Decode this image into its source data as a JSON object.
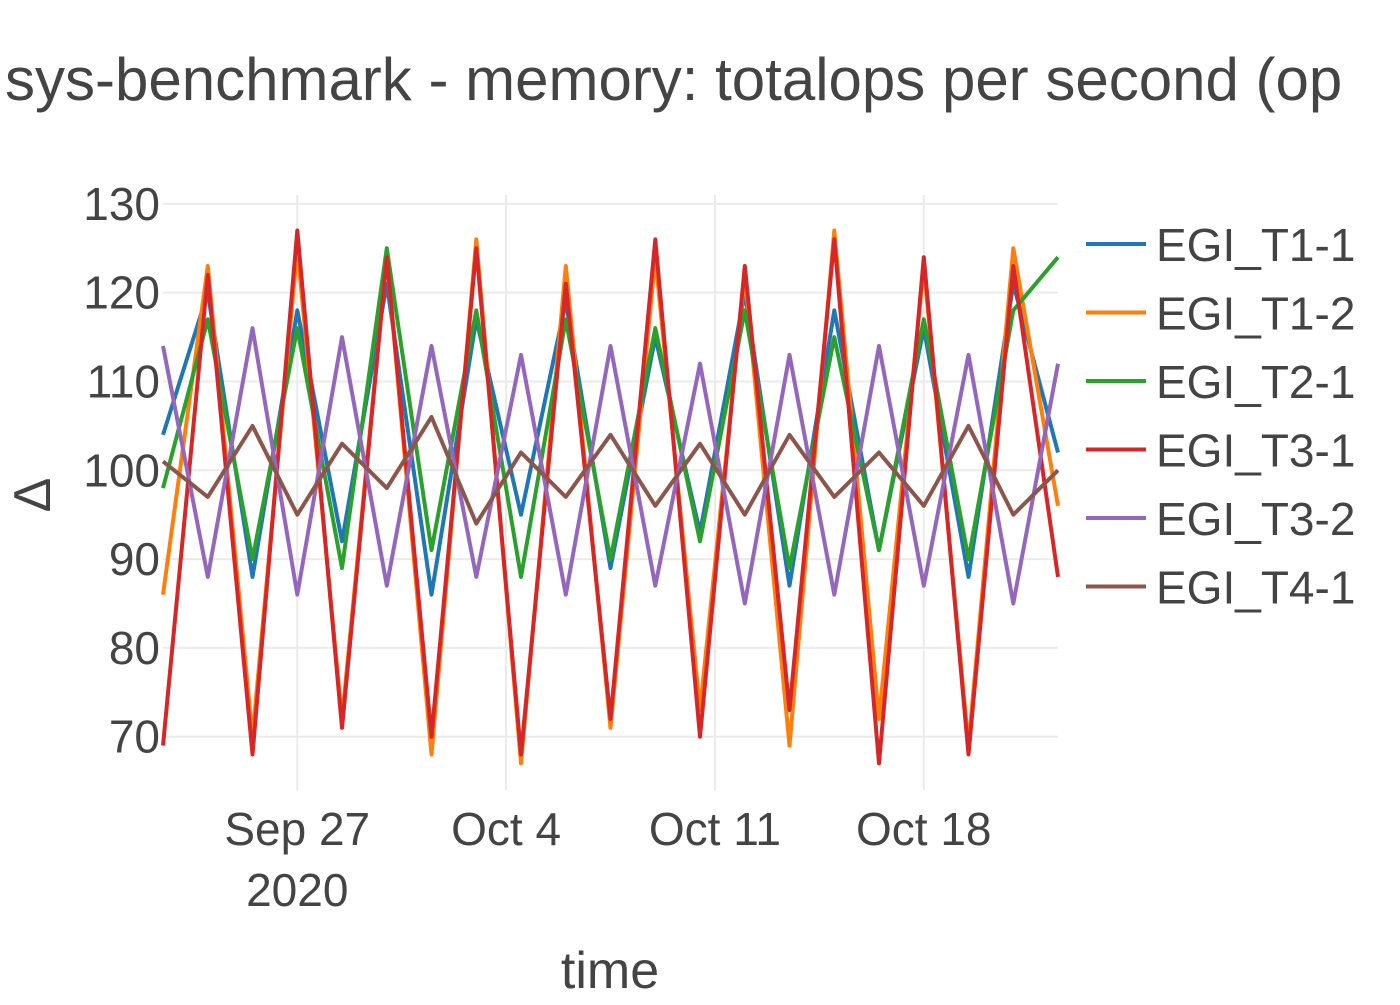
{
  "chart_data": {
    "type": "line",
    "title": "sys-benchmark - memory: totalops per second (op",
    "xlabel": "time",
    "ylabel": "Δ",
    "x_range": [
      "2020-09-22T12:00:00",
      "2020-10-22T12:00:00"
    ],
    "ylim": [
      64,
      131
    ],
    "y_ticks": [
      70,
      80,
      90,
      100,
      110,
      120,
      130
    ],
    "x_ticks": [
      {
        "date": "2020-09-27",
        "label": "Sep 27",
        "sublabel": "2020"
      },
      {
        "date": "2020-10-04",
        "label": "Oct 4",
        "sublabel": ""
      },
      {
        "date": "2020-10-11",
        "label": "Oct 11",
        "sublabel": ""
      },
      {
        "date": "2020-10-18",
        "label": "Oct 18",
        "sublabel": ""
      }
    ],
    "grid": true,
    "legend_position": "right",
    "series": [
      {
        "name": "EGI_T1-1",
        "color": "#1f77b4",
        "x": [
          "2020-09-22T12:00",
          "2020-09-24T00:00",
          "2020-09-25T12:00",
          "2020-09-27T00:00",
          "2020-09-28T12:00",
          "2020-09-30T00:00",
          "2020-10-01T12:00",
          "2020-10-03T00:00",
          "2020-10-04T12:00",
          "2020-10-06T00:00",
          "2020-10-07T12:00",
          "2020-10-09T00:00",
          "2020-10-10T12:00",
          "2020-10-12T00:00",
          "2020-10-13T12:00",
          "2020-10-15T00:00",
          "2020-10-16T12:00",
          "2020-10-18T00:00",
          "2020-10-19T12:00",
          "2020-10-21T00:00",
          "2020-10-22T12:00"
        ],
        "y": [
          104,
          120,
          88,
          118,
          92,
          121,
          86,
          117,
          95,
          119,
          89,
          115,
          93,
          120,
          87,
          118,
          91,
          116,
          88,
          121,
          102
        ]
      },
      {
        "name": "EGI_T1-2",
        "color": "#ff7f0e",
        "x": [
          "2020-09-22T12:00",
          "2020-09-24T00:00",
          "2020-09-25T12:00",
          "2020-09-27T00:00",
          "2020-09-28T12:00",
          "2020-09-30T00:00",
          "2020-10-01T12:00",
          "2020-10-03T00:00",
          "2020-10-04T12:00",
          "2020-10-06T00:00",
          "2020-10-07T12:00",
          "2020-10-09T00:00",
          "2020-10-10T12:00",
          "2020-10-12T00:00",
          "2020-10-13T12:00",
          "2020-10-15T00:00",
          "2020-10-16T12:00",
          "2020-10-18T00:00",
          "2020-10-19T12:00",
          "2020-10-21T00:00",
          "2020-10-22T12:00"
        ],
        "y": [
          86,
          123,
          70,
          125,
          72,
          124,
          68,
          126,
          67,
          123,
          71,
          124,
          73,
          122,
          69,
          127,
          72,
          123,
          69,
          125,
          96
        ]
      },
      {
        "name": "EGI_T2-1",
        "color": "#2ca02c",
        "x": [
          "2020-09-22T12:00",
          "2020-09-24T00:00",
          "2020-09-25T12:00",
          "2020-09-27T00:00",
          "2020-09-28T12:00",
          "2020-09-30T00:00",
          "2020-10-01T12:00",
          "2020-10-03T00:00",
          "2020-10-04T12:00",
          "2020-10-06T00:00",
          "2020-10-07T12:00",
          "2020-10-09T00:00",
          "2020-10-10T12:00",
          "2020-10-12T00:00",
          "2020-10-13T12:00",
          "2020-10-15T00:00",
          "2020-10-16T12:00",
          "2020-10-18T00:00",
          "2020-10-19T12:00",
          "2020-10-21T00:00",
          "2020-10-22T12:00"
        ],
        "y": [
          98,
          117,
          90,
          116,
          89,
          125,
          91,
          118,
          88,
          117,
          90,
          116,
          92,
          118,
          89,
          115,
          91,
          117,
          90,
          118,
          124
        ]
      },
      {
        "name": "EGI_T3-1",
        "color": "#d62728",
        "x": [
          "2020-09-22T12:00",
          "2020-09-24T00:00",
          "2020-09-25T12:00",
          "2020-09-27T00:00",
          "2020-09-28T12:00",
          "2020-09-30T00:00",
          "2020-10-01T12:00",
          "2020-10-03T00:00",
          "2020-10-04T12:00",
          "2020-10-06T00:00",
          "2020-10-07T12:00",
          "2020-10-09T00:00",
          "2020-10-10T12:00",
          "2020-10-12T00:00",
          "2020-10-13T12:00",
          "2020-10-15T00:00",
          "2020-10-16T12:00",
          "2020-10-18T00:00",
          "2020-10-19T12:00",
          "2020-10-21T00:00",
          "2020-10-22T12:00"
        ],
        "y": [
          69,
          122,
          68,
          127,
          71,
          124,
          70,
          125,
          68,
          121,
          72,
          126,
          70,
          123,
          73,
          126,
          67,
          124,
          68,
          123,
          88
        ]
      },
      {
        "name": "EGI_T3-2",
        "color": "#9467bd",
        "x": [
          "2020-09-22T12:00",
          "2020-09-24T00:00",
          "2020-09-25T12:00",
          "2020-09-27T00:00",
          "2020-09-28T12:00",
          "2020-09-30T00:00",
          "2020-10-01T12:00",
          "2020-10-03T00:00",
          "2020-10-04T12:00",
          "2020-10-06T00:00",
          "2020-10-07T12:00",
          "2020-10-09T00:00",
          "2020-10-10T12:00",
          "2020-10-12T00:00",
          "2020-10-13T12:00",
          "2020-10-15T00:00",
          "2020-10-16T12:00",
          "2020-10-18T00:00",
          "2020-10-19T12:00",
          "2020-10-21T00:00",
          "2020-10-22T12:00"
        ],
        "y": [
          114,
          88,
          116,
          86,
          115,
          87,
          114,
          88,
          113,
          86,
          114,
          87,
          112,
          85,
          113,
          86,
          114,
          87,
          113,
          85,
          112
        ]
      },
      {
        "name": "EGI_T4-1",
        "color": "#8c564b",
        "x": [
          "2020-09-22T12:00",
          "2020-09-24T00:00",
          "2020-09-25T12:00",
          "2020-09-27T00:00",
          "2020-09-28T12:00",
          "2020-09-30T00:00",
          "2020-10-01T12:00",
          "2020-10-03T00:00",
          "2020-10-04T12:00",
          "2020-10-06T00:00",
          "2020-10-07T12:00",
          "2020-10-09T00:00",
          "2020-10-10T12:00",
          "2020-10-12T00:00",
          "2020-10-13T12:00",
          "2020-10-15T00:00",
          "2020-10-16T12:00",
          "2020-10-18T00:00",
          "2020-10-19T12:00",
          "2020-10-21T00:00",
          "2020-10-22T12:00"
        ],
        "y": [
          101,
          97,
          105,
          95,
          103,
          98,
          106,
          94,
          102,
          97,
          104,
          96,
          103,
          95,
          104,
          97,
          102,
          96,
          105,
          95,
          100
        ]
      }
    ]
  }
}
